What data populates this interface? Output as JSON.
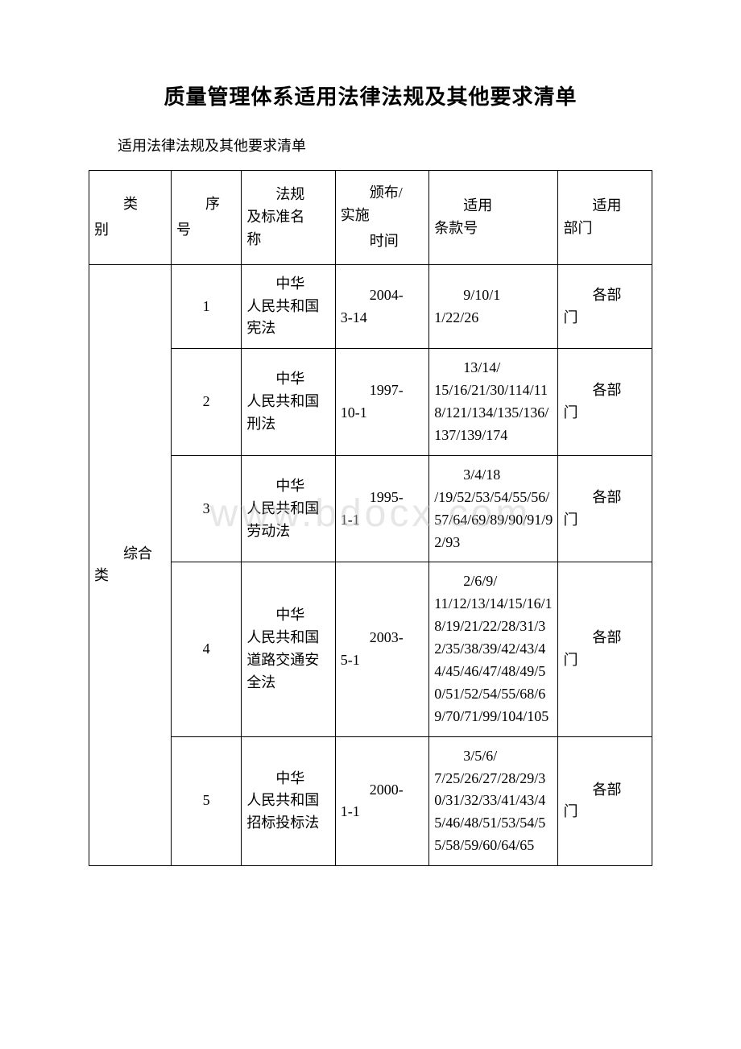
{
  "title": "质量管理体系适用法律法规及其他要求清单",
  "subtitle": "适用法律法规及其他要求清单",
  "watermark": "www.bdocx.com",
  "table": {
    "columns": {
      "category": {
        "line1": "类",
        "line2": "别"
      },
      "seq": {
        "line1": "序",
        "line2": "号"
      },
      "name": {
        "line1": "法规",
        "line2": "及标准名",
        "line3": "称"
      },
      "date": {
        "line1": "颁布/",
        "line2": "实施",
        "line3": "时间"
      },
      "clause": {
        "line1": "适用",
        "line2": "条款号"
      },
      "dept": {
        "line1": "适用",
        "line2": "部门"
      }
    },
    "category_label": "综合类",
    "rows": [
      {
        "seq": "1",
        "name_first": "中华",
        "name_rest": "人民共和国宪法",
        "date_first": "2004-",
        "date_rest": "3-14",
        "clause_first": "9/10/1",
        "clause_rest": "1/22/26",
        "dept_first": "各部",
        "dept_rest": "门"
      },
      {
        "seq": "2",
        "name_first": "中华",
        "name_rest": "人民共和国刑法",
        "date_first": "1997-",
        "date_rest": "10-1",
        "clause_first": "13/14/",
        "clause_rest": "15/16/21/30/114/118/121/134/135/136/137/139/174",
        "dept_first": "各部",
        "dept_rest": "门"
      },
      {
        "seq": "3",
        "name_first": "中华",
        "name_rest": "人民共和国劳动法",
        "date_first": "1995-",
        "date_rest": "1-1",
        "clause_first": "3/4/18",
        "clause_rest": "/19/52/53/54/55/56/57/64/69/89/90/91/92/93",
        "dept_first": "各部",
        "dept_rest": "门"
      },
      {
        "seq": "4",
        "name_first": "中华",
        "name_rest": "人民共和国道路交通安全法",
        "date_first": "2003-",
        "date_rest": "5-1",
        "clause_first": "2/6/9/",
        "clause_rest": "11/12/13/14/15/16/18/19/21/22/28/31/32/35/38/39/42/43/44/45/46/47/48/49/50/51/52/54/55/68/69/70/71/99/104/105",
        "dept_first": "各部",
        "dept_rest": "门"
      },
      {
        "seq": "5",
        "name_first": "中华",
        "name_rest": "人民共和国招标投标法",
        "date_first": "2000-",
        "date_rest": "1-1",
        "clause_first": "3/5/6/",
        "clause_rest": "7/25/26/27/28/29/30/31/32/33/41/43/45/46/48/51/53/54/55/58/59/60/64/65",
        "dept_first": "各部",
        "dept_rest": "门"
      }
    ]
  }
}
